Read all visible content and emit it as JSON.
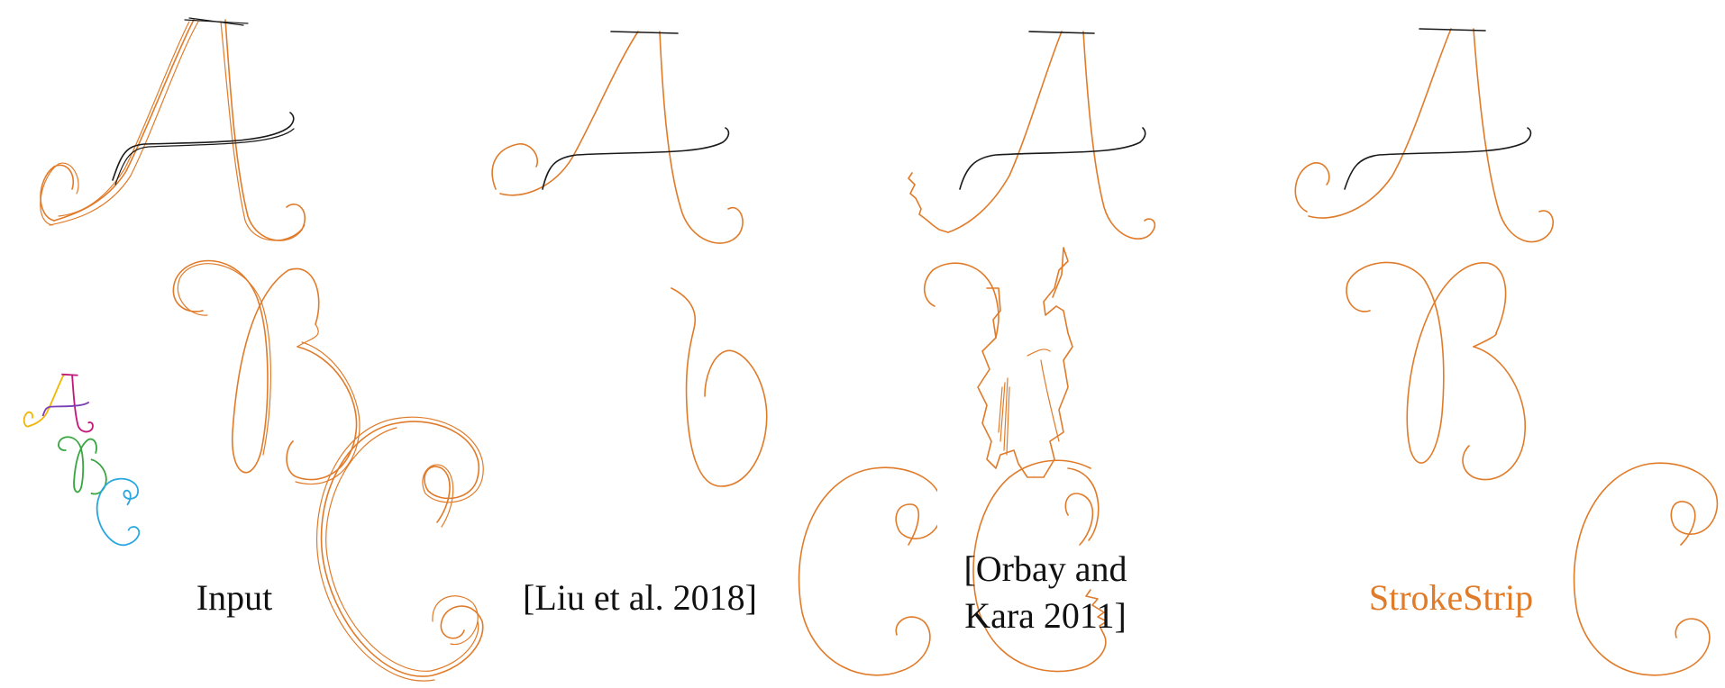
{
  "figure": {
    "panels": [
      {
        "id": "input",
        "caption": "Input",
        "accent": false
      },
      {
        "id": "liu",
        "caption": "[Liu et al. 2018]",
        "accent": false
      },
      {
        "id": "orbay",
        "caption_line1": "[Orbay and",
        "caption_line2": "Kara 2011]",
        "accent": false
      },
      {
        "id": "strokestrip",
        "caption": "StrokeStrip",
        "accent": true
      }
    ],
    "colors": {
      "stroke_orange": "#e07b2a",
      "stroke_black": "#1a1a1a",
      "thumb_yellow": "#f2b705",
      "thumb_magenta": "#c2187a",
      "thumb_green": "#3aa641",
      "thumb_blue": "#2aa7e0"
    }
  }
}
